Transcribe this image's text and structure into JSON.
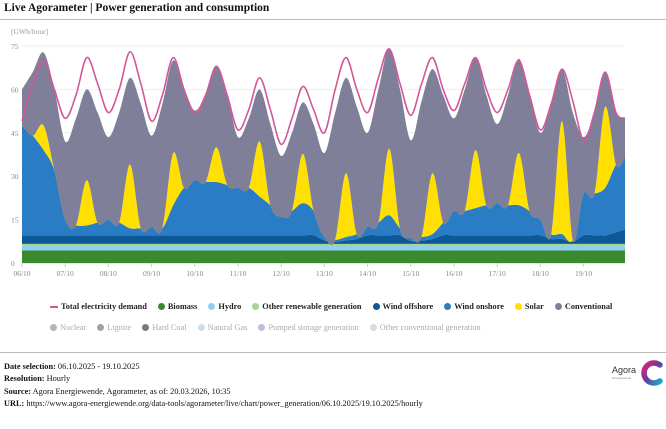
{
  "header": {
    "title": "Live Agorameter | Power generation and consumption"
  },
  "chart_data": {
    "type": "area",
    "stacked": true,
    "unit_label": "[GWh/hour]",
    "ylim": [
      0,
      75
    ],
    "yticks": [
      0,
      15,
      30,
      45,
      60,
      75
    ],
    "grid": true,
    "legend_placement": "bottom",
    "xtick_labels": [
      "06/10",
      "07/10",
      "08/10",
      "09/10",
      "10/10",
      "11/10",
      "12/10",
      "13/10",
      "14/10",
      "15/10",
      "16/10",
      "17/10",
      "18/10",
      "19/10"
    ],
    "x": [
      "06/10 00:00",
      "06/10 06:00",
      "06/10 12:00",
      "06/10 18:00",
      "07/10 00:00",
      "07/10 06:00",
      "07/10 12:00",
      "07/10 18:00",
      "08/10 00:00",
      "08/10 06:00",
      "08/10 12:00",
      "08/10 18:00",
      "09/10 00:00",
      "09/10 06:00",
      "09/10 12:00",
      "09/10 18:00",
      "10/10 00:00",
      "10/10 06:00",
      "10/10 12:00",
      "10/10 18:00",
      "11/10 00:00",
      "11/10 06:00",
      "11/10 12:00",
      "11/10 18:00",
      "12/10 00:00",
      "12/10 06:00",
      "12/10 12:00",
      "12/10 18:00",
      "13/10 00:00",
      "13/10 06:00",
      "13/10 12:00",
      "13/10 18:00",
      "14/10 00:00",
      "14/10 06:00",
      "14/10 12:00",
      "14/10 18:00",
      "15/10 00:00",
      "15/10 06:00",
      "15/10 12:00",
      "15/10 18:00",
      "16/10 00:00",
      "16/10 06:00",
      "16/10 12:00",
      "16/10 18:00",
      "17/10 00:00",
      "17/10 06:00",
      "17/10 12:00",
      "17/10 18:00",
      "18/10 00:00",
      "18/10 06:00",
      "18/10 12:00",
      "18/10 18:00",
      "19/10 00:00",
      "19/10 06:00",
      "19/10 12:00",
      "19/10 18:00",
      "19/10 23:00"
    ],
    "series": [
      {
        "name": "Biomass",
        "color": "#3b8a2f",
        "values": [
          4.3,
          4.3,
          4.3,
          4.3,
          4.3,
          4.3,
          4.3,
          4.3,
          4.3,
          4.3,
          4.3,
          4.3,
          4.3,
          4.3,
          4.3,
          4.3,
          4.3,
          4.3,
          4.3,
          4.3,
          4.3,
          4.3,
          4.3,
          4.3,
          4.3,
          4.3,
          4.3,
          4.3,
          4.3,
          4.3,
          4.3,
          4.3,
          4.3,
          4.3,
          4.3,
          4.3,
          4.3,
          4.3,
          4.3,
          4.3,
          4.3,
          4.3,
          4.3,
          4.3,
          4.3,
          4.3,
          4.3,
          4.3,
          4.3,
          4.3,
          4.3,
          4.3,
          4.3,
          4.3,
          4.3,
          4.3,
          4.3
        ]
      },
      {
        "name": "Hydro",
        "color": "#8ed0ef",
        "values": [
          1.9,
          1.9,
          1.9,
          1.9,
          1.9,
          1.9,
          1.9,
          1.9,
          1.9,
          1.9,
          1.9,
          1.9,
          1.9,
          1.9,
          1.9,
          1.9,
          1.9,
          1.9,
          1.9,
          1.9,
          1.9,
          1.9,
          1.9,
          1.9,
          1.9,
          1.9,
          1.9,
          1.9,
          1.9,
          1.9,
          1.9,
          1.9,
          1.9,
          1.9,
          1.9,
          1.9,
          1.9,
          1.9,
          1.9,
          1.9,
          1.9,
          1.9,
          1.9,
          1.9,
          1.9,
          1.9,
          1.9,
          1.9,
          1.9,
          1.9,
          1.9,
          1.9,
          1.9,
          1.9,
          1.9,
          1.9,
          1.9
        ]
      },
      {
        "name": "Other renewable generation",
        "color": "#a9d58b",
        "values": [
          0.4,
          0.4,
          0.4,
          0.4,
          0.4,
          0.4,
          0.4,
          0.4,
          0.4,
          0.4,
          0.4,
          0.4,
          0.4,
          0.4,
          0.4,
          0.4,
          0.4,
          0.4,
          0.4,
          0.4,
          0.4,
          0.4,
          0.4,
          0.4,
          0.4,
          0.4,
          0.4,
          0.4,
          0.4,
          0.4,
          0.4,
          0.4,
          0.4,
          0.4,
          0.4,
          0.4,
          0.4,
          0.4,
          0.4,
          0.4,
          0.4,
          0.4,
          0.4,
          0.4,
          0.4,
          0.4,
          0.4,
          0.4,
          0.4,
          0.4,
          0.4,
          0.4,
          0.4,
          0.4,
          0.4,
          0.4,
          0.4
        ]
      },
      {
        "name": "Wind offshore",
        "color": "#0d5896",
        "values": [
          3,
          3,
          3,
          3,
          3,
          3,
          3,
          3,
          3,
          3,
          3,
          3,
          3,
          3,
          3,
          3,
          3,
          3,
          3,
          3,
          3,
          3,
          3,
          3,
          3,
          3,
          3,
          3,
          1.2,
          0.7,
          1.2,
          1.7,
          3,
          3,
          3,
          3,
          1,
          1.2,
          1.7,
          3,
          3,
          3,
          3,
          3,
          3,
          3,
          3,
          3,
          3,
          1.7,
          1.7,
          0.7,
          3,
          3,
          3,
          4,
          5
        ]
      },
      {
        "name": "Wind onshore",
        "color": "#2a7cc5",
        "values": [
          37.9,
          34.4,
          29.4,
          22.4,
          5.4,
          3.4,
          3.4,
          4.4,
          5.4,
          4.4,
          2.4,
          2.4,
          2.9,
          2.4,
          10.4,
          16.4,
          19,
          18.4,
          18.4,
          17.4,
          16.4,
          16.4,
          13.4,
          10.4,
          6.4,
          8.4,
          11.1,
          8.4,
          1.2,
          0.7,
          1.2,
          1.7,
          2.9,
          4.4,
          6.9,
          2.4,
          1,
          1.2,
          1.7,
          4.4,
          8.4,
          8.4,
          9.4,
          10.4,
          11,
          10.4,
          10.4,
          8.4,
          5.4,
          1.7,
          1.7,
          0.7,
          14.4,
          14.4,
          16.4,
          23.4,
          24.9
        ]
      },
      {
        "name": "Solar",
        "color": "#ffe000",
        "values": [
          0,
          0,
          8.5,
          0,
          0,
          0,
          15.6,
          0,
          0,
          0,
          22,
          0,
          0,
          0,
          18,
          0,
          0,
          0,
          12,
          0,
          0,
          0,
          19,
          0,
          0,
          0,
          17,
          0,
          0,
          0,
          22,
          0,
          0,
          0,
          23,
          0,
          0,
          0,
          21,
          0,
          0,
          0,
          20,
          0,
          0,
          0,
          18,
          0,
          0,
          0,
          39,
          0,
          0,
          0,
          28,
          0,
          0
        ]
      },
      {
        "name": "Conventional",
        "color": "#7f7f9a",
        "values": [
          12.5,
          22,
          25.2,
          28,
          27,
          37,
          31.4,
          38,
          28.5,
          38,
          30,
          43,
          31.5,
          43,
          32,
          34,
          24.1,
          30,
          28,
          31,
          17.5,
          24,
          18,
          28,
          21,
          27,
          17.8,
          30,
          29,
          44,
          33,
          44,
          32.5,
          46,
          34.5,
          48,
          33.8,
          47,
          36,
          44,
          32,
          42,
          32,
          38,
          27.4,
          38,
          32.6,
          40,
          30,
          45,
          18,
          44,
          19.5,
          28,
          12,
          18,
          13.5
        ]
      }
    ],
    "demand": {
      "name": "Total electricity demand",
      "color": "#d4579a",
      "values": [
        49,
        62,
        70,
        60,
        50,
        58,
        71,
        62,
        52,
        60,
        73,
        62,
        49,
        58,
        71,
        60,
        52,
        58,
        68,
        58,
        46,
        53,
        64,
        53,
        41,
        50,
        61,
        53,
        45,
        60,
        71,
        60,
        52,
        64,
        74,
        62,
        51,
        62,
        71,
        60,
        52.7,
        62,
        71,
        60,
        52,
        60,
        70,
        58,
        46,
        55,
        67,
        56,
        42.4,
        52,
        66,
        52,
        50
      ]
    }
  },
  "legend": {
    "active": [
      {
        "label": "Total electricity demand",
        "color": "#d4579a",
        "shape": "line"
      },
      {
        "label": "Biomass",
        "color": "#3b8a2f",
        "shape": "dot"
      },
      {
        "label": "Hydro",
        "color": "#8ed0ef",
        "shape": "dot"
      },
      {
        "label": "Other renewable generation",
        "color": "#a9d58b",
        "shape": "dot"
      },
      {
        "label": "Wind offshore",
        "color": "#0d5896",
        "shape": "dot"
      },
      {
        "label": "Wind onshore",
        "color": "#2a7cc5",
        "shape": "dot"
      },
      {
        "label": "Solar",
        "color": "#ffe000",
        "shape": "dot"
      },
      {
        "label": "Conventional",
        "color": "#7f7f9a",
        "shape": "dot"
      }
    ],
    "hidden": [
      {
        "label": "Nuclear",
        "color": "#b4b4b4"
      },
      {
        "label": "Lignite",
        "color": "#ab9ea4"
      },
      {
        "label": "Hard Coal",
        "color": "#7a7a7a"
      },
      {
        "label": "Natural Gas",
        "color": "#cbdde6"
      },
      {
        "label": "Pumped storage generation",
        "color": "#b9bedb"
      },
      {
        "label": "Other conventional generation",
        "color": "#dcdcdc"
      }
    ]
  },
  "footer": {
    "date_label": "Date selection:",
    "date_value": "06.10.2025 - 19.10.2025",
    "resolution_label": "Resolution:",
    "resolution_value": "Hourly",
    "source_label": "Source:",
    "source_value": "Agora Energiewende, Agorameter, as of: 20.03.2026, 10:35",
    "url_label": "URL:",
    "url_value": "https://www.agora-energiewende.org/data-tools/agorameter/live/chart/power_generation/06.10.2025/19.10.2025/hourly"
  },
  "logo": {
    "text": "Agora",
    "subtext": "Energiewende"
  }
}
